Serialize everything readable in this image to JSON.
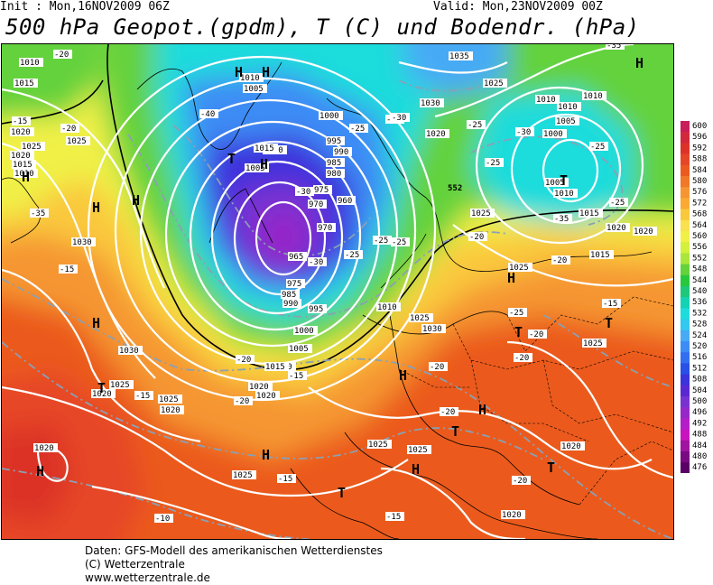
{
  "header": {
    "init": "Init : Mon,16NOV2009 06Z",
    "valid": "Valid: Mon,23NOV2009 00Z",
    "title": "500 hPa Geopot.(gpdm), T (C) und Bodendr. (hPa)"
  },
  "footer": {
    "line1": "Daten: GFS-Modell des amerikanischen Wetterdienstes",
    "line2": "(C) Wetterzentrale",
    "line3": "www.wetterzentrale.de"
  },
  "colors": {
    "c600": "#c81e5a",
    "c596": "#d2283c",
    "c592": "#dc3228",
    "c588": "#e64628",
    "c584": "#eb5a1e",
    "c580": "#f07828",
    "c576": "#f59632",
    "c572": "#faaa32",
    "c568": "#fac83c",
    "c564": "#fae150",
    "c560": "#f0f046",
    "c556": "#d2f03c",
    "c552": "#aae63c",
    "c548": "#64d23c",
    "c544": "#28c83c",
    "c540": "#1ec87a",
    "c536": "#14d2b4",
    "c532": "#1edcdc",
    "c528": "#32c8f0",
    "c524": "#46aaf5",
    "c520": "#3c8cf5",
    "c516": "#326ef0",
    "c512": "#2850e6",
    "c508": "#3c32dc",
    "c504": "#5a28d2",
    "c500": "#7832d2",
    "c496": "#9628c8",
    "c492": "#b41ec8",
    "c488": "#c814be",
    "c484": "#a014a0",
    "c480": "#780a82",
    "c476": "#5a0064"
  },
  "scale": {
    "levels": [
      "600",
      "596",
      "592",
      "588",
      "584",
      "580",
      "576",
      "572",
      "568",
      "564",
      "560",
      "556",
      "552",
      "548",
      "544",
      "540",
      "536",
      "532",
      "528",
      "524",
      "520",
      "516",
      "512",
      "508",
      "504",
      "500",
      "496",
      "492",
      "488",
      "484",
      "480",
      "476"
    ]
  },
  "map": {
    "pressure_labels": [
      {
        "text": "1010"
      },
      {
        "text": "1015"
      },
      {
        "text": "1020"
      },
      {
        "text": "1025"
      },
      {
        "text": "1010"
      },
      {
        "text": "1030"
      },
      {
        "text": "1020"
      },
      {
        "text": "1025"
      },
      {
        "text": "1015"
      },
      {
        "text": "1010"
      },
      {
        "text": "1005"
      },
      {
        "text": "1000"
      },
      {
        "text": "995"
      },
      {
        "text": "990"
      },
      {
        "text": "985"
      },
      {
        "text": "980"
      },
      {
        "text": "975"
      },
      {
        "text": "970"
      },
      {
        "text": "965"
      },
      {
        "text": "975"
      },
      {
        "text": "985"
      },
      {
        "text": "990"
      },
      {
        "text": "995"
      },
      {
        "text": "1000"
      },
      {
        "text": "1005"
      },
      {
        "text": "1010"
      },
      {
        "text": "1020"
      },
      {
        "text": "1025"
      },
      {
        "text": "1030"
      },
      {
        "text": "1035"
      },
      {
        "text": "1025"
      },
      {
        "text": "1030"
      },
      {
        "text": "1020"
      },
      {
        "text": "1010"
      },
      {
        "text": "1005"
      },
      {
        "text": "1000"
      },
      {
        "text": "1005"
      },
      {
        "text": "1010"
      },
      {
        "text": "1015"
      },
      {
        "text": "1020"
      },
      {
        "text": "1025"
      },
      {
        "text": "1025"
      },
      {
        "text": "1030"
      },
      {
        "text": "1020"
      },
      {
        "text": "1025"
      },
      {
        "text": "1020"
      },
      {
        "text": "1020"
      },
      {
        "text": "1025"
      },
      {
        "text": "1025"
      },
      {
        "text": "1020"
      },
      {
        "text": "1020"
      },
      {
        "text": "1015"
      },
      {
        "text": "1010"
      },
      {
        "text": "1010"
      },
      {
        "text": "1005"
      },
      {
        "text": "1000"
      },
      {
        "text": "970"
      },
      {
        "text": "960"
      },
      {
        "text": "1015"
      },
      {
        "text": "1010"
      },
      {
        "text": "1020"
      },
      {
        "text": "1025"
      },
      {
        "text": "1015"
      },
      {
        "text": "1020"
      },
      {
        "text": "1025"
      },
      {
        "text": "1025"
      }
    ],
    "temp_labels": [
      {
        "text": "-20"
      },
      {
        "text": "-15"
      },
      {
        "text": "-20"
      },
      {
        "text": "-40"
      },
      {
        "text": "-35"
      },
      {
        "text": "-30"
      },
      {
        "text": "-25"
      },
      {
        "text": "-30"
      },
      {
        "text": "-25"
      },
      {
        "text": "-35"
      },
      {
        "text": "-30"
      },
      {
        "text": "-25"
      },
      {
        "text": "-35"
      },
      {
        "text": "-20"
      },
      {
        "text": "-25"
      },
      {
        "text": "-25"
      },
      {
        "text": "-25"
      },
      {
        "text": "-20"
      },
      {
        "text": "-15"
      },
      {
        "text": "-20"
      },
      {
        "text": "-15"
      },
      {
        "text": "-20"
      },
      {
        "text": "-25"
      },
      {
        "text": "-20"
      },
      {
        "text": "-15"
      },
      {
        "text": "-20"
      },
      {
        "text": "-15"
      },
      {
        "text": "-15"
      },
      {
        "text": "-10"
      },
      {
        "text": "-10"
      },
      {
        "text": "-15"
      },
      {
        "text": "-20"
      },
      {
        "text": "-15"
      },
      {
        "text": "-30"
      },
      {
        "text": "-25"
      },
      {
        "text": "-25"
      },
      {
        "text": "-20"
      },
      {
        "text": "-30"
      },
      {
        "text": "-20"
      }
    ],
    "centers": [
      {
        "text": "H"
      },
      {
        "text": "H"
      },
      {
        "text": "H"
      },
      {
        "text": "T"
      },
      {
        "text": "H"
      },
      {
        "text": "T"
      },
      {
        "text": "H"
      },
      {
        "text": "H"
      },
      {
        "text": "T"
      },
      {
        "text": "H"
      },
      {
        "text": "H"
      },
      {
        "text": "T"
      },
      {
        "text": "H"
      },
      {
        "text": "T"
      },
      {
        "text": "H"
      },
      {
        "text": "T"
      },
      {
        "text": "H"
      },
      {
        "text": "H"
      },
      {
        "text": "H"
      },
      {
        "text": "T"
      },
      {
        "text": "T"
      },
      {
        "text": "H"
      }
    ],
    "contour_552_label": "552"
  }
}
